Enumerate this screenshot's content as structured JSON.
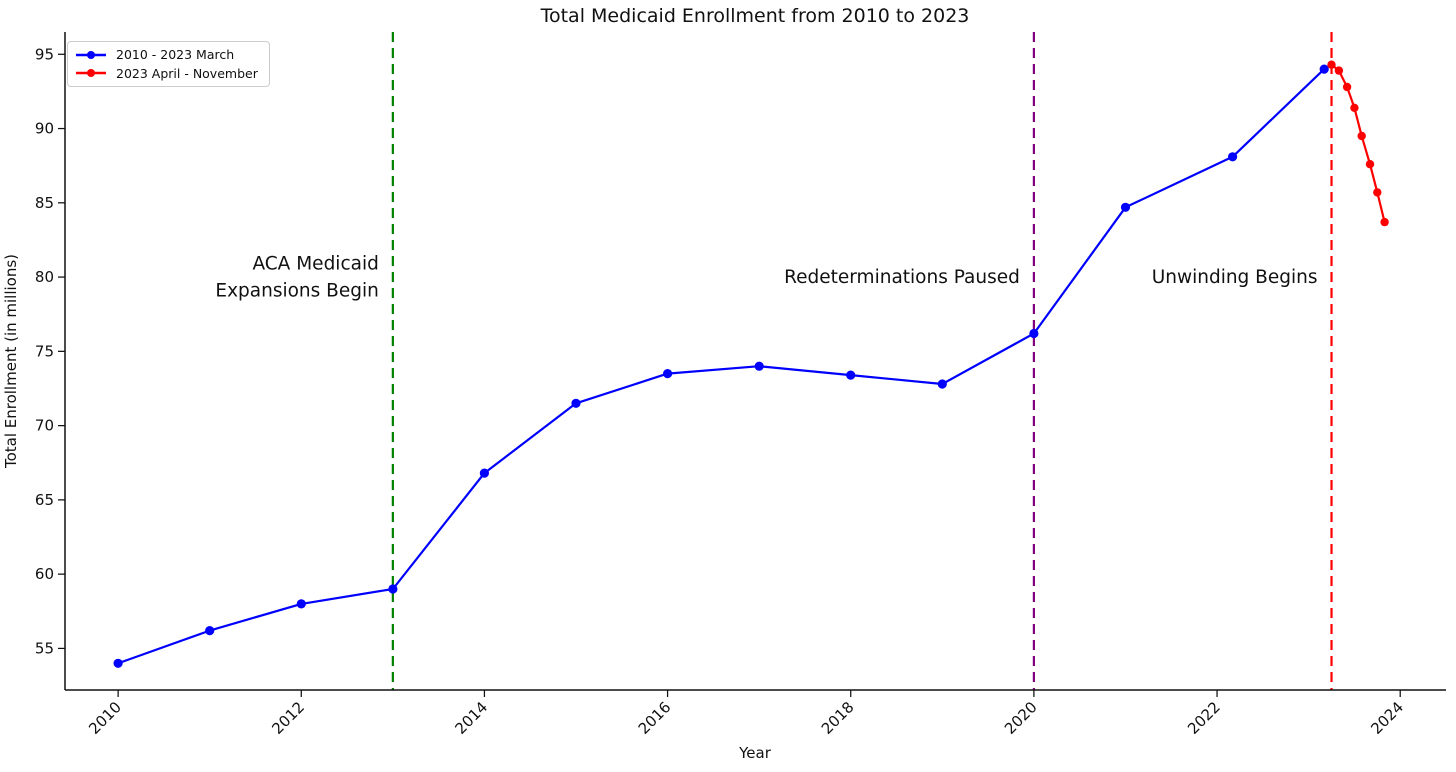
{
  "chart_data": {
    "type": "line",
    "title": "Total Medicaid Enrollment from 2010 to 2023",
    "xlabel": "Year",
    "ylabel": "Total Enrollment (in millions)",
    "xlim": [
      2009.42,
      2024.5
    ],
    "ylim": [
      52.2,
      96.5
    ],
    "x_ticks": [
      2010,
      2012,
      2014,
      2016,
      2018,
      2020,
      2022,
      2024
    ],
    "y_ticks": [
      55,
      60,
      65,
      70,
      75,
      80,
      85,
      90,
      95
    ],
    "grid": false,
    "legend_position": "upper left",
    "axis_color": "#111111",
    "series": [
      {
        "name": "2010 - 2023 March",
        "color": "#0000ff",
        "marker": "circle",
        "x": [
          2010,
          2011,
          2012,
          2013,
          2014,
          2015,
          2016,
          2017,
          2018,
          2019,
          2020,
          2021,
          2022.17,
          2023.17
        ],
        "y": [
          54.0,
          56.2,
          58.0,
          59.0,
          66.8,
          71.5,
          73.5,
          74.0,
          73.4,
          72.8,
          76.2,
          84.7,
          88.1,
          94.0
        ]
      },
      {
        "name": "2023 April - November",
        "color": "#ff0000",
        "marker": "circle",
        "x": [
          2023.25,
          2023.33,
          2023.42,
          2023.5,
          2023.58,
          2023.67,
          2023.75,
          2023.83
        ],
        "y": [
          94.3,
          93.9,
          92.8,
          91.4,
          89.5,
          87.6,
          85.7,
          83.7
        ]
      }
    ],
    "vlines": [
      {
        "x": 2013,
        "color": "#008000",
        "style": "dashed",
        "label_lines": [
          "ACA Medicaid",
          "Expansions Begin"
        ],
        "label_y": 80.0
      },
      {
        "x": 2020,
        "color": "#800080",
        "style": "dashed",
        "label_lines": [
          "Redeterminations Paused"
        ],
        "label_y": 80.0
      },
      {
        "x": 2023.25,
        "color": "#ff0000",
        "style": "dashed",
        "label_lines": [
          "Unwinding Begins"
        ],
        "label_y": 80.0
      }
    ]
  }
}
